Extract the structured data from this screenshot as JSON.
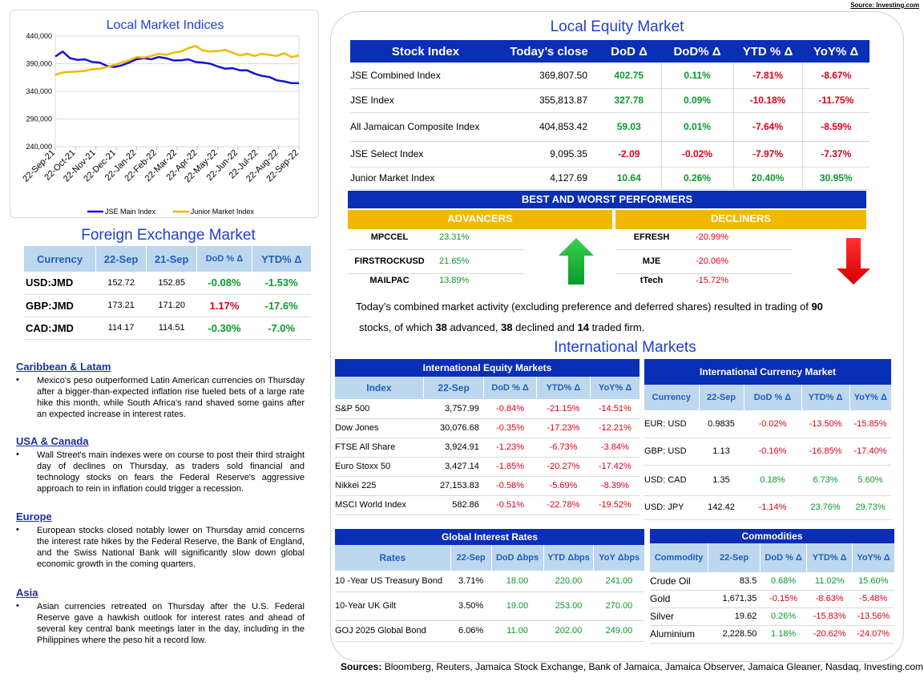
{
  "source_top": "Source: Investing.com",
  "chart_title": "Local Market Indices",
  "chart_data": {
    "type": "line",
    "title": "Local Market Indices",
    "x_ticks": [
      "22-Sep-21",
      "22-Oct-21",
      "22-Nov-21",
      "22-Dec-21",
      "22-Jan-22",
      "22-Feb-22",
      "22-Mar-22",
      "22-Apr-22",
      "22-May-22",
      "22-Jun-22",
      "22-Jul-22",
      "22-Aug-22",
      "22-Sep-22"
    ],
    "y_ticks": [
      "440,000",
      "390,000",
      "340,000",
      "290,000",
      "240,000"
    ],
    "ylim": [
      240000,
      440000
    ],
    "grid": true,
    "legend_position": "bottom",
    "series": [
      {
        "name": "JSE Main Index",
        "color": "#1414d4",
        "values": [
          403000,
          412000,
          400000,
          397000,
          398000,
          393000,
          392000,
          386000,
          384000,
          387000,
          392000,
          398000,
          400000,
          398000,
          402000,
          400000,
          396000,
          396000,
          398000,
          393000,
          392000,
          390000,
          385000,
          381000,
          382000,
          378000,
          378000,
          372000,
          368000,
          366000,
          360000,
          358000,
          355000,
          355000
        ]
      },
      {
        "name": "Junior Market Index",
        "color": "#f2b800",
        "values": [
          370000,
          374000,
          375000,
          376000,
          377000,
          380000,
          381000,
          384000,
          388000,
          392000,
          396000,
          402000,
          401000,
          404000,
          408000,
          406000,
          410000,
          412000,
          418000,
          422000,
          414000,
          412000,
          413000,
          415000,
          410000,
          405000,
          408000,
          404000,
          408000,
          406000,
          404000,
          409000,
          402000,
          405000
        ]
      }
    ]
  },
  "fx": {
    "title": "Foreign Exchange Market",
    "headers": [
      "Currency",
      "22-Sep",
      "21-Sep",
      "DoD % Δ",
      "YTD% Δ"
    ],
    "rows": [
      {
        "c": "USD:JMD",
        "a": "152.72",
        "b": "152.85",
        "d": "-0.08%",
        "y": "-1.53%",
        "dc": "pos",
        "yc": "pos"
      },
      {
        "c": "GBP:JMD",
        "a": "173.21",
        "b": "171.20",
        "d": "1.17%",
        "y": "-17.6%",
        "dc": "neg",
        "yc": "pos"
      },
      {
        "c": "CAD:JMD",
        "a": "114.17",
        "b": "114.51",
        "d": "-0.30%",
        "y": "-7.0%",
        "dc": "pos",
        "yc": "pos"
      }
    ]
  },
  "news": [
    {
      "h": "Caribbean & Latam",
      "t": "Mexico's peso outperformed Latin American currencies on Thursday after a bigger-than-expected inflation rise fueled bets of a large rate hike this month, while South Africa's rand shaved some gains after an expected increase in interest rates."
    },
    {
      "h": "USA & Canada",
      "t": "Wall Street's main indexes were on course to post their third straight day of declines on Thursday, as traders sold financial and technology stocks on fears the Federal Reserve's aggressive approach to rein in inflation could trigger a recession."
    },
    {
      "h": "Europe",
      "t": "European stocks closed notably lower on Thursday amid concerns the interest rate hikes by the Federal Reserve, the Bank of England, and the Swiss National Bank will significantly slow down global economic growth in the coming quarters."
    },
    {
      "h": "Asia",
      "t": "Asian currencies retreated on Thursday after the U.S. Federal Reserve gave a hawkish outlook for interest rates and ahead of several key central bank meetings later in the day, including in the Philippines where the peso hit a record low."
    }
  ],
  "equity": {
    "title": "Local Equity Market",
    "headers": [
      "Stock Index",
      "Today’s close",
      "DoD Δ",
      "DoD% Δ",
      "YTD % Δ",
      "YoY% Δ"
    ],
    "rows": [
      {
        "n": "JSE Combined Index",
        "c": "369,807.50",
        "d": "402.75",
        "dp": "0.11%",
        "y": "-7.81%",
        "yy": "-8.67%",
        "s": [
          "pos",
          "pos",
          "neg",
          "neg"
        ]
      },
      {
        "n": "JSE Index",
        "c": "355,813.87",
        "d": "327.78",
        "dp": "0.09%",
        "y": "-10.18%",
        "yy": "-11.75%",
        "s": [
          "pos",
          "pos",
          "neg",
          "neg"
        ]
      },
      {
        "n": "All Jamaican Composite Index",
        "c": "404,853.42",
        "d": "59.03",
        "dp": "0.01%",
        "y": "-7.64%",
        "yy": "-8.59%",
        "s": [
          "pos",
          "pos",
          "neg",
          "neg"
        ]
      },
      {
        "n": "JSE Select Index",
        "c": "9,095.35",
        "d": "-2.09",
        "dp": "-0.02%",
        "y": "-7.97%",
        "yy": "-7.37%",
        "s": [
          "neg",
          "neg",
          "neg",
          "neg"
        ]
      },
      {
        "n": "Junior Market Index",
        "c": "4,127.69",
        "d": "10.64",
        "dp": "0.26%",
        "y": "20.40%",
        "yy": "30.95%",
        "s": [
          "pos",
          "pos",
          "pos",
          "pos"
        ]
      }
    ]
  },
  "performers": {
    "title": "BEST AND WORST PERFORMERS",
    "adv_label": "ADVANCERS",
    "dec_label": "DECLINERS",
    "advancers": [
      {
        "n": "MPCCEL",
        "v": "23.31%"
      },
      {
        "n": "FIRSTROCKUSD",
        "v": "21.65%"
      },
      {
        "n": "MAILPAC",
        "v": "13.89%"
      }
    ],
    "decliners": [
      {
        "n": "EFRESH",
        "v": "-20.99%"
      },
      {
        "n": "MJE",
        "v": "-20.06%"
      },
      {
        "n": "tTech",
        "v": "-15.72%"
      }
    ]
  },
  "activity": {
    "p1": "Today’s combined market activity (excluding preference and deferred shares) resulted in trading of ",
    "n1": "90",
    "p2": "stocks, of which ",
    "n2": "38",
    "p3": " advanced, ",
    "n3": "38",
    "p4": " declined and ",
    "n4": "14",
    "p5": " traded firm."
  },
  "intl_title": "International Markets",
  "intl_equity": {
    "title": "International Equity Markets",
    "headers": [
      "Index",
      "22-Sep",
      "DoD % Δ",
      "YTD% Δ",
      "YoY% Δ"
    ],
    "rows": [
      {
        "n": "S&P 500",
        "v": "3,757.99",
        "d": "-0.84%",
        "y": "-21.15%",
        "yy": "-14.51%"
      },
      {
        "n": "Dow Jones",
        "v": "30,076.68",
        "d": "-0.35%",
        "y": "-17.23%",
        "yy": "-12.21%"
      },
      {
        "n": "FTSE All Share",
        "v": "3,924.91",
        "d": "-1.23%",
        "y": "-6.73%",
        "yy": "-3.84%"
      },
      {
        "n": "Euro Stoxx 50",
        "v": "3,427.14",
        "d": "-1.85%",
        "y": "-20.27%",
        "yy": "-17.42%"
      },
      {
        "n": "Nikkei 225",
        "v": "27,153.83",
        "d": "-0.58%",
        "y": "-5.69%",
        "yy": "-8.39%"
      },
      {
        "n": "MSCI World Index",
        "v": "582.86",
        "d": "-0.51%",
        "y": "-22.78%",
        "yy": "-19.52%"
      }
    ]
  },
  "intl_currency": {
    "title": "International Currency Market",
    "headers": [
      "Currency",
      "22-Sep",
      "DoD % Δ",
      "YTD% Δ",
      "YoY% Δ"
    ],
    "rows": [
      {
        "n": "EUR: USD",
        "v": "0.9835",
        "d": "-0.02%",
        "y": "-13.50%",
        "yy": "-15.85%",
        "s": [
          "neg",
          "neg",
          "neg"
        ]
      },
      {
        "n": "GBP: USD",
        "v": "1.13",
        "d": "-0.16%",
        "y": "-16.85%",
        "yy": "-17.40%",
        "s": [
          "neg",
          "neg",
          "neg"
        ]
      },
      {
        "n": "USD: CAD",
        "v": "1.35",
        "d": "0.18%",
        "y": "6.73%",
        "yy": "5.60%",
        "s": [
          "pos",
          "pos",
          "pos"
        ]
      },
      {
        "n": "USD: JPY",
        "v": "142.42",
        "d": "-1.14%",
        "y": "23.76%",
        "yy": "29.73%",
        "s": [
          "neg",
          "pos",
          "pos"
        ]
      }
    ]
  },
  "rates": {
    "title": "Global Interest Rates",
    "headers": [
      "Rates",
      "22-Sep",
      "DoD Δbps",
      "YTD Δbps",
      "YoY Δbps"
    ],
    "rows": [
      {
        "n": "10 -Year US Treasury Bond",
        "v": "3.71%",
        "d": "18.00",
        "y": "220.00",
        "yy": "241.00"
      },
      {
        "n": "10-Year UK Gilt",
        "v": "3.50%",
        "d": "19.00",
        "y": "253.00",
        "yy": "270.00"
      },
      {
        "n": "GOJ 2025 Global Bond",
        "v": "6.06%",
        "d": "11.00",
        "y": "202.00",
        "yy": "249.00"
      }
    ]
  },
  "commodities": {
    "title": "Commodities",
    "headers": [
      "Commodity",
      "22-Sep",
      "DoD % Δ",
      "YTD% Δ",
      "YoY% Δ"
    ],
    "rows": [
      {
        "n": "Crude Oil",
        "v": "83.5",
        "d": "0.68%",
        "y": "11.02%",
        "yy": "15.60%",
        "s": [
          "pos",
          "pos",
          "pos"
        ]
      },
      {
        "n": "Gold",
        "v": "1,671.35",
        "d": "-0.15%",
        "y": "-8.63%",
        "yy": "-5.48%",
        "s": [
          "neg",
          "neg",
          "neg"
        ]
      },
      {
        "n": "Silver",
        "v": "19.62",
        "d": "0.26%",
        "y": "-15.83%",
        "yy": "-13.56%",
        "s": [
          "pos",
          "neg",
          "neg"
        ]
      },
      {
        "n": "Aluminium",
        "v": "2,228.50",
        "d": "1.18%",
        "y": "-20.62%",
        "yy": "-24.07%",
        "s": [
          "pos",
          "neg",
          "neg"
        ]
      }
    ]
  },
  "footer": {
    "label": "Sources:",
    "text": " Bloomberg, Reuters, Jamaica Stock Exchange, Bank of Jamaica, Jamaica Observer, Jamaica Gleaner, Nasdaq, Investing.com"
  }
}
